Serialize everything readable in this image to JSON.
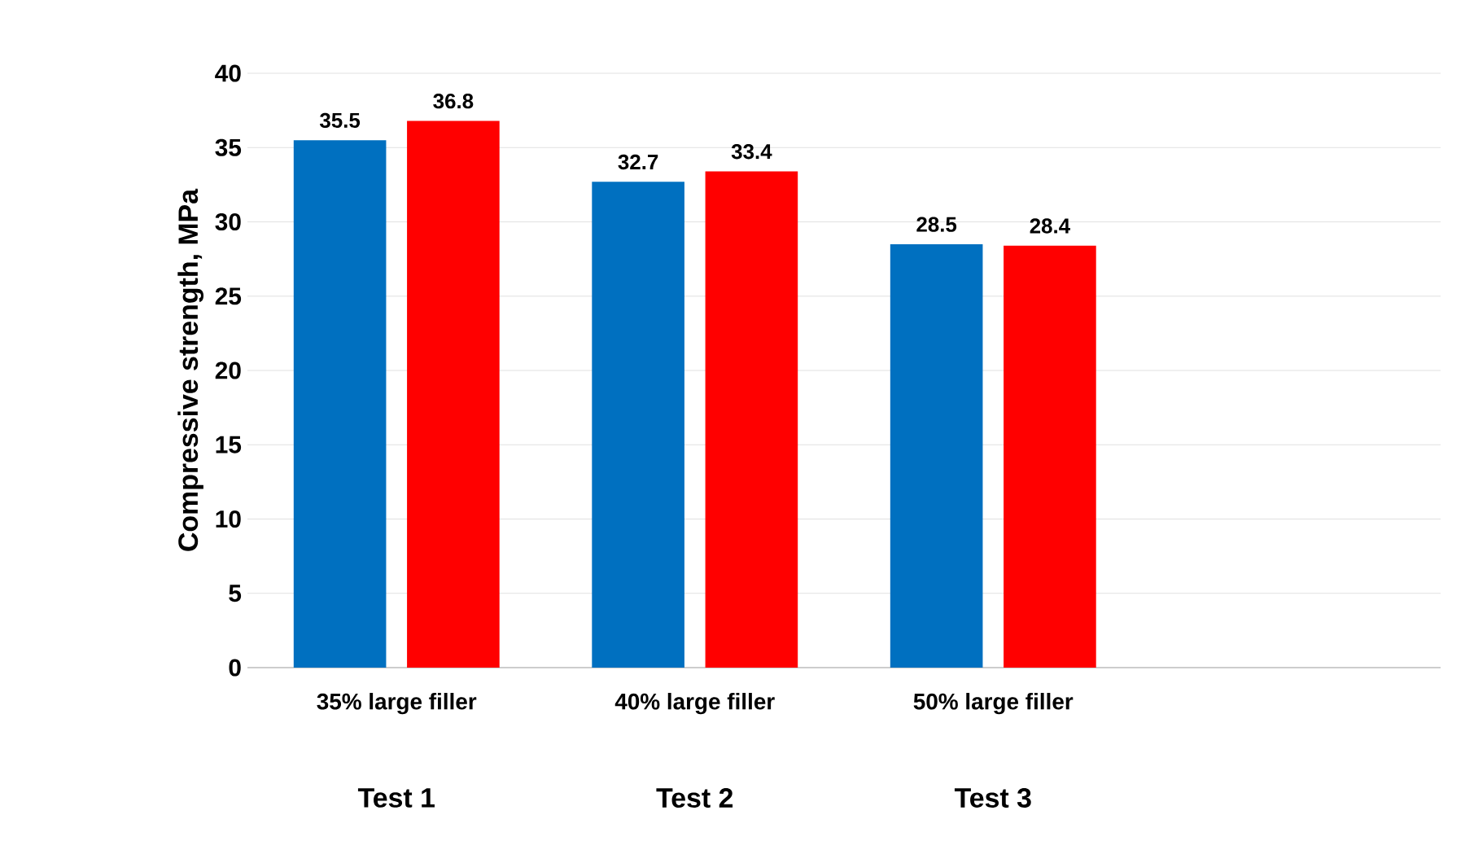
{
  "chart_data": {
    "type": "bar",
    "ylabel": "Compressive strength, MPa",
    "categories": [
      "35% large filler",
      "40% large filler",
      "50% large filler",
      null
    ],
    "series": [
      {
        "color": "#0070c0",
        "values": [
          35.5,
          32.7,
          28.5,
          null
        ]
      },
      {
        "color": "#ff0000",
        "values": [
          36.8,
          33.4,
          28.4,
          null
        ]
      }
    ],
    "ylim": [
      0,
      40
    ],
    "yticks": [
      0,
      5,
      10,
      15,
      20,
      25,
      30,
      35,
      40
    ],
    "grid": "y",
    "data_labels": true,
    "annotations": [
      "Test 1",
      "Test 2",
      "Test 3"
    ]
  }
}
